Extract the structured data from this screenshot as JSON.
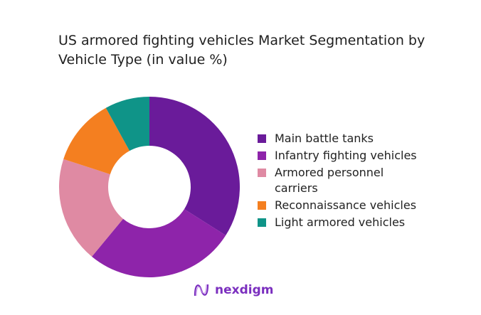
{
  "chart_data": {
    "type": "pie",
    "donut": true,
    "title": "US armored fighting vehicles Market Segmentation by Vehicle Type (in value %)",
    "categories": [
      "Main battle tanks",
      "Infantry fighting vehicles",
      "Armored personnel carriers",
      "Reconnaissance vehicles",
      "Light armored vehicles"
    ],
    "values": [
      34,
      27,
      19,
      12,
      8
    ],
    "colors": [
      "#6a1b9a",
      "#8e24aa",
      "#df8aa3",
      "#f47f20",
      "#0f9488"
    ],
    "legend_position": "right"
  },
  "logo": {
    "text": "nexdigm"
  }
}
